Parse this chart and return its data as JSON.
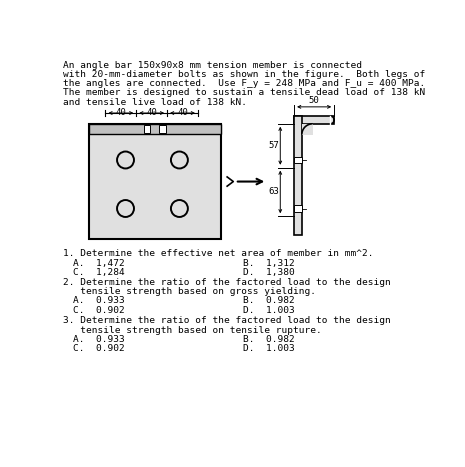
{
  "title_lines": [
    "An angle bar 150x90x8 mm tension member is connected",
    "with 20-mm-diameter bolts as shown in the figure.  Both legs of",
    "the angles are connected.  Use F_y = 248 MPa and F_u = 400 MPa.",
    "The member is designed to sustain a tensile dead load of 138 kN",
    "and tensile live load of 138 kN."
  ],
  "q1": "1. Determine the effective net area of member in mm^2.",
  "q1_A": "A.  1,472",
  "q1_B": "B.  1,312",
  "q1_C": "C.  1,284",
  "q1_D": "D.  1,380",
  "q2_l1": "2. Determine the ratio of the factored load to the design",
  "q2_l2": "   tensile strength based on gross yielding.",
  "q2_A": "A.  0.933",
  "q2_B": "B.  0.982",
  "q2_C": "C.  0.902",
  "q2_D": "D.  1.003",
  "q3_l1": "3. Determine the ratio of the factored load to the design",
  "q3_l2": "   tensile strength based on tensile rupture.",
  "q3_A": "A.  0.933",
  "q3_B": "B.  0.982",
  "q3_C": "C.  0.902",
  "q3_D": "D.  1.003",
  "dim40": [
    "40",
    "40",
    "40"
  ],
  "dim50": "50",
  "dim57": "57",
  "dim63": "63",
  "bg": "#ffffff",
  "fg": "#000000",
  "plate_fill": "#e0e0e0",
  "flange_fill": "#c0c0c0"
}
